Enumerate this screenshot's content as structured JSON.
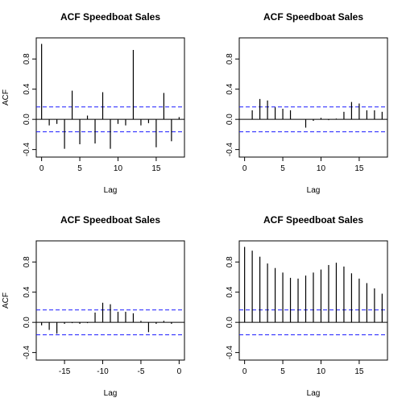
{
  "chart_data": [
    {
      "type": "acf",
      "title": "ACF Speedboat Sales",
      "xlabel": "Lag",
      "ylabel": "ACF",
      "xlim": [
        -0.7,
        18.7
      ],
      "ylim": [
        -0.5,
        1.08
      ],
      "xticks": [
        0,
        5,
        10,
        15
      ],
      "yticks": [
        -0.4,
        0.0,
        0.4,
        0.8
      ],
      "ci": 0.165,
      "lags": [
        0,
        1,
        2,
        3,
        4,
        5,
        6,
        7,
        8,
        9,
        10,
        11,
        12,
        13,
        14,
        15,
        16,
        17,
        18
      ],
      "values": [
        1.0,
        -0.08,
        -0.06,
        -0.39,
        0.38,
        -0.33,
        0.05,
        -0.32,
        0.36,
        -0.39,
        -0.06,
        -0.08,
        0.92,
        -0.08,
        -0.05,
        -0.37,
        0.35,
        -0.29,
        0.03
      ]
    },
    {
      "type": "acf",
      "title": "ACF Speedboat Sales",
      "xlabel": "Lag",
      "ylabel": "",
      "xlim": [
        -0.7,
        18.7
      ],
      "ylim": [
        -0.5,
        1.08
      ],
      "xticks": [
        0,
        5,
        10,
        15
      ],
      "yticks": [
        -0.4,
        0.0,
        0.4,
        0.8
      ],
      "ci": 0.165,
      "lags": [
        0,
        1,
        2,
        3,
        4,
        5,
        6,
        7,
        8,
        9,
        10,
        11,
        12,
        13,
        14,
        15,
        16,
        17,
        18
      ],
      "values": [
        0.0,
        0.12,
        0.27,
        0.25,
        0.16,
        0.14,
        0.12,
        0.0,
        -0.11,
        -0.02,
        0.02,
        -0.01,
        0.01,
        0.1,
        0.23,
        0.21,
        0.12,
        0.12,
        0.1
      ]
    },
    {
      "type": "acf",
      "title": "ACF Speedboat Sales",
      "xlabel": "Lag",
      "ylabel": "ACF",
      "xlim": [
        -18.7,
        0.7
      ],
      "ylim": [
        -0.5,
        1.08
      ],
      "xticks": [
        -15,
        -10,
        -5,
        0
      ],
      "yticks": [
        -0.4,
        0.0,
        0.4,
        0.8
      ],
      "ci": 0.165,
      "lags": [
        -18,
        -17,
        -16,
        -15,
        -14,
        -13,
        -12,
        -11,
        -10,
        -9,
        -8,
        -7,
        -6,
        -5,
        -4,
        -3,
        -2,
        -1,
        0
      ],
      "values": [
        -0.04,
        -0.1,
        -0.15,
        -0.02,
        -0.01,
        -0.02,
        -0.01,
        0.13,
        0.26,
        0.24,
        0.14,
        0.14,
        0.12,
        0.02,
        -0.13,
        -0.02,
        0.02,
        -0.02,
        0.0
      ]
    },
    {
      "type": "acf",
      "title": "ACF Speedboat Sales",
      "xlabel": "Lag",
      "ylabel": "",
      "xlim": [
        -0.7,
        18.7
      ],
      "ylim": [
        -0.5,
        1.08
      ],
      "xticks": [
        0,
        5,
        10,
        15
      ],
      "yticks": [
        -0.4,
        0.0,
        0.4,
        0.8
      ],
      "ci": 0.165,
      "lags": [
        0,
        1,
        2,
        3,
        4,
        5,
        6,
        7,
        8,
        9,
        10,
        11,
        12,
        13,
        14,
        15,
        16,
        17,
        18
      ],
      "values": [
        1.0,
        0.95,
        0.87,
        0.78,
        0.72,
        0.66,
        0.59,
        0.58,
        0.62,
        0.66,
        0.7,
        0.76,
        0.79,
        0.74,
        0.65,
        0.58,
        0.52,
        0.45,
        0.38
      ]
    }
  ],
  "colors": {
    "ci_line": "#1a1aff",
    "axis": "#000000",
    "bar": "#000000"
  }
}
